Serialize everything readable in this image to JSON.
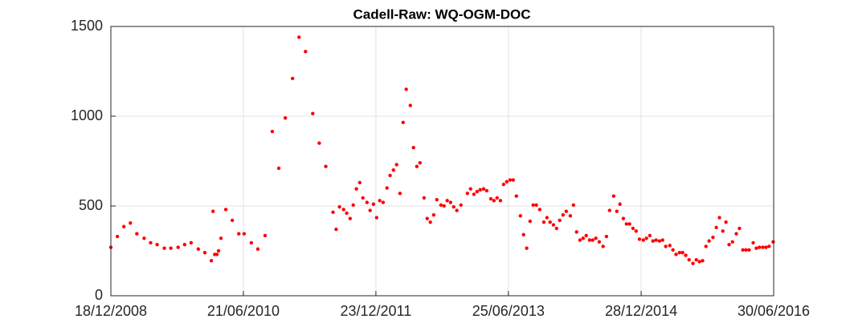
{
  "chart_data": {
    "type": "scatter",
    "title": "Cadell-Raw: WQ-OGM-DOC",
    "x": [
      "2008-12-18",
      "2009-01-14",
      "2009-02-10",
      "2009-03-09",
      "2009-04-05",
      "2009-05-05",
      "2009-06-01",
      "2009-06-28",
      "2009-07-28",
      "2009-08-24",
      "2009-09-23",
      "2009-10-20",
      "2009-11-16",
      "2009-12-16",
      "2010-01-12",
      "2010-02-08",
      "2010-02-15",
      "2010-02-22",
      "2010-03-03",
      "2010-03-10",
      "2010-03-20",
      "2010-04-09",
      "2010-05-06",
      "2010-06-02",
      "2010-06-24",
      "2010-07-24",
      "2010-08-20",
      "2010-09-19",
      "2010-10-19",
      "2010-11-15",
      "2010-12-12",
      "2011-01-11",
      "2011-02-07",
      "2011-03-06",
      "2011-04-05",
      "2011-05-02",
      "2011-05-29",
      "2011-06-28",
      "2011-07-11",
      "2011-07-25",
      "2011-08-11",
      "2011-08-24",
      "2011-09-07",
      "2011-09-20",
      "2011-10-03",
      "2011-10-17",
      "2011-10-30",
      "2011-11-16",
      "2011-11-29",
      "2011-12-13",
      "2011-12-26",
      "2012-01-08",
      "2012-01-22",
      "2012-02-07",
      "2012-02-20",
      "2012-03-05",
      "2012-03-18",
      "2012-04-01",
      "2012-04-14",
      "2012-04-27",
      "2012-05-14",
      "2012-05-27",
      "2012-06-10",
      "2012-06-23",
      "2012-07-10",
      "2012-07-23",
      "2012-08-05",
      "2012-08-19",
      "2012-09-01",
      "2012-09-18",
      "2012-10-01",
      "2012-10-14",
      "2012-10-28",
      "2012-11-10",
      "2012-11-23",
      "2012-12-10",
      "2013-01-06",
      "2013-01-19",
      "2013-02-02",
      "2013-02-15",
      "2013-02-28",
      "2013-03-14",
      "2013-03-27",
      "2013-04-13",
      "2013-04-26",
      "2013-05-09",
      "2013-05-23",
      "2013-06-05",
      "2013-06-18",
      "2013-07-02",
      "2013-07-15",
      "2013-07-28",
      "2013-08-14",
      "2013-08-27",
      "2013-09-09",
      "2013-09-23",
      "2013-10-06",
      "2013-10-19",
      "2013-11-02",
      "2013-11-19",
      "2013-12-02",
      "2013-12-15",
      "2013-12-29",
      "2014-01-11",
      "2014-01-24",
      "2014-02-07",
      "2014-02-20",
      "2014-03-09",
      "2014-03-22",
      "2014-04-04",
      "2014-04-18",
      "2014-05-01",
      "2014-05-14",
      "2014-05-28",
      "2014-06-10",
      "2014-06-23",
      "2014-07-07",
      "2014-07-23",
      "2014-08-06",
      "2014-08-19",
      "2014-09-05",
      "2014-09-18",
      "2014-10-01",
      "2014-10-15",
      "2014-10-28",
      "2014-11-10",
      "2014-11-24",
      "2014-12-07",
      "2014-12-21",
      "2015-01-06",
      "2015-01-19",
      "2015-02-02",
      "2015-02-15",
      "2015-02-28",
      "2015-03-14",
      "2015-03-27",
      "2015-04-09",
      "2015-04-26",
      "2015-05-09",
      "2015-05-22",
      "2015-06-05",
      "2015-06-18",
      "2015-07-01",
      "2015-07-15",
      "2015-07-31",
      "2015-08-14",
      "2015-08-27",
      "2015-09-09",
      "2015-09-23",
      "2015-10-06",
      "2015-10-22",
      "2015-11-05",
      "2015-11-18",
      "2015-12-02",
      "2015-12-15",
      "2015-12-28",
      "2016-01-11",
      "2016-01-27",
      "2016-02-09",
      "2016-02-23",
      "2016-03-07",
      "2016-03-20",
      "2016-04-06",
      "2016-04-19",
      "2016-05-02",
      "2016-05-16",
      "2016-05-29",
      "2016-06-11",
      "2016-06-28"
    ],
    "values": [
      270,
      330,
      385,
      405,
      345,
      320,
      295,
      285,
      265,
      265,
      270,
      285,
      295,
      260,
      240,
      195,
      470,
      230,
      230,
      250,
      320,
      480,
      420,
      345,
      345,
      295,
      260,
      335,
      915,
      710,
      990,
      1210,
      1440,
      1360,
      1015,
      850,
      720,
      465,
      370,
      495,
      480,
      460,
      430,
      505,
      595,
      630,
      545,
      520,
      475,
      510,
      435,
      530,
      520,
      600,
      670,
      700,
      730,
      570,
      965,
      1150,
      1060,
      825,
      720,
      740,
      545,
      430,
      410,
      450,
      535,
      505,
      500,
      530,
      520,
      495,
      475,
      505,
      570,
      595,
      565,
      580,
      590,
      595,
      585,
      540,
      530,
      545,
      530,
      620,
      635,
      645,
      645,
      555,
      445,
      340,
      265,
      415,
      505,
      505,
      480,
      410,
      435,
      410,
      395,
      375,
      420,
      450,
      470,
      445,
      505,
      355,
      310,
      320,
      335,
      310,
      310,
      320,
      300,
      275,
      330,
      475,
      555,
      470,
      510,
      430,
      400,
      400,
      375,
      360,
      315,
      310,
      320,
      335,
      305,
      310,
      305,
      310,
      275,
      280,
      255,
      230,
      240,
      240,
      225,
      200,
      180,
      200,
      190,
      195,
      275,
      305,
      325,
      380,
      435,
      360,
      410,
      285,
      300,
      345,
      375,
      255,
      255,
      255,
      295,
      265,
      270,
      270,
      270,
      275,
      300
    ],
    "color": "#ff0000",
    "xlim": [
      "2008-12-18",
      "2016-06-30"
    ],
    "xticks": [
      {
        "value": "2008-12-18",
        "label": "18/12/2008"
      },
      {
        "value": "2010-06-21",
        "label": "21/06/2010"
      },
      {
        "value": "2011-12-23",
        "label": "23/12/2011"
      },
      {
        "value": "2013-06-25",
        "label": "25/06/2013"
      },
      {
        "value": "2014-12-28",
        "label": "28/12/2014"
      },
      {
        "value": "2016-06-30",
        "label": "30/06/2016"
      }
    ],
    "ylim": [
      0,
      1500
    ],
    "yticks": [
      0,
      500,
      1000,
      1500
    ],
    "grid": true
  }
}
